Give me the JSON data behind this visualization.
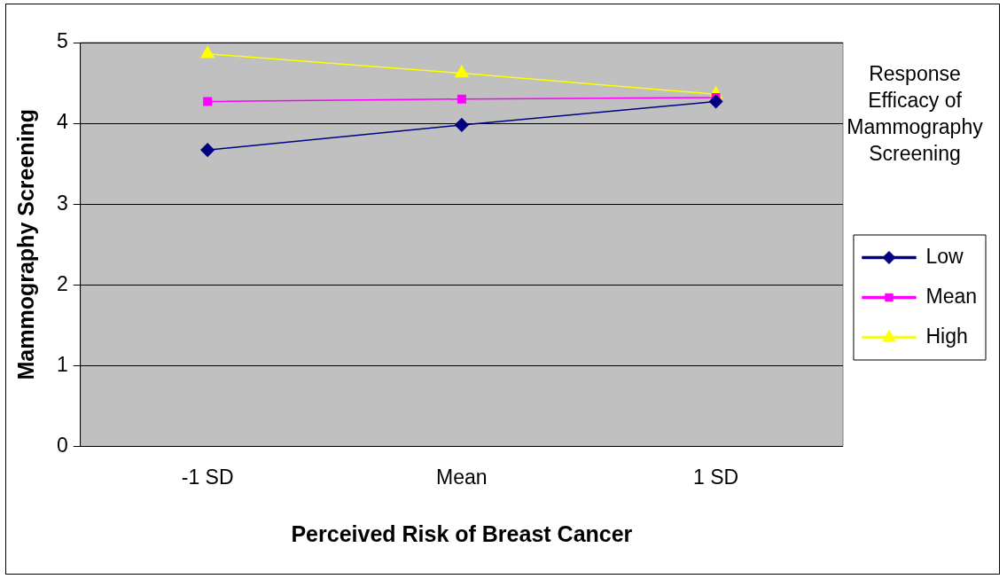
{
  "chart_data": {
    "type": "line",
    "xlabel": "Perceived Risk of Breast Cancer",
    "ylabel": "Mammography Screening",
    "legend_title": "Response Efficacy of Mammography Screening",
    "categories": [
      "-1 SD",
      "Mean",
      "1 SD"
    ],
    "series": [
      {
        "name": "Low",
        "color": "#000080",
        "marker": "diamond",
        "values": [
          3.67,
          3.98,
          4.27
        ]
      },
      {
        "name": "Mean",
        "color": "#ff00ff",
        "marker": "square",
        "values": [
          4.27,
          4.3,
          4.32
        ]
      },
      {
        "name": "High",
        "color": "#ffff00",
        "marker": "triangle",
        "values": [
          4.86,
          4.62,
          4.36
        ]
      }
    ],
    "ylim": [
      0,
      5
    ],
    "yticks": [
      0,
      1,
      2,
      3,
      4,
      5
    ],
    "grid": "y",
    "legend": "right"
  }
}
